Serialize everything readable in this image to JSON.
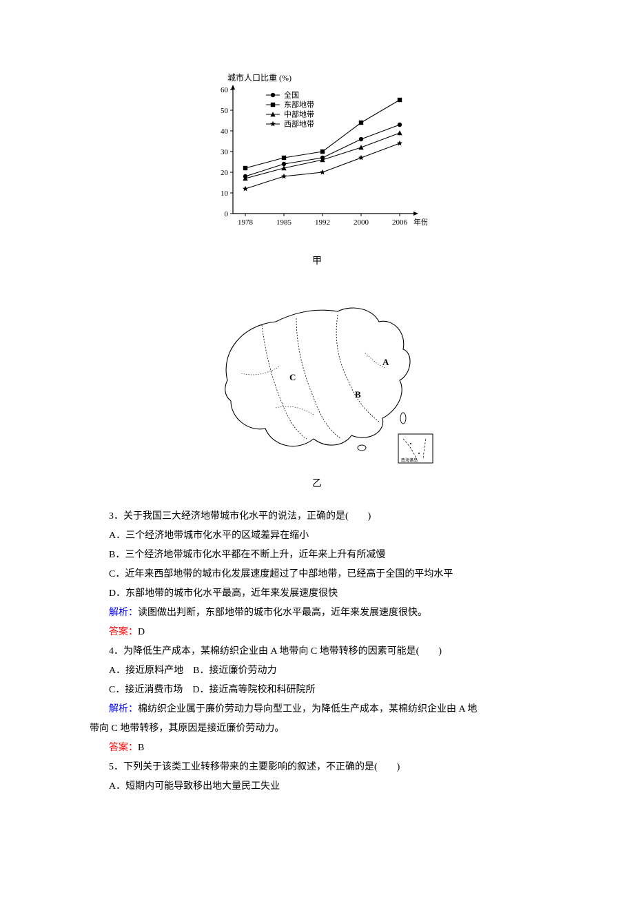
{
  "chart": {
    "ylabel": "城市人口比重 (%)",
    "caption": "甲",
    "years": [
      "1978",
      "1985",
      "1992",
      "2000",
      "2006"
    ],
    "yticks": [
      0,
      10,
      20,
      30,
      40,
      50,
      60
    ],
    "series": [
      {
        "label": "全国",
        "marker": "circle",
        "values": [
          18,
          24,
          27,
          36,
          43
        ]
      },
      {
        "label": "东部地带",
        "marker": "square",
        "values": [
          22,
          27,
          30,
          44,
          55
        ]
      },
      {
        "label": "中部地带",
        "marker": "triangle",
        "values": [
          17,
          22,
          26,
          32,
          39
        ]
      },
      {
        "label": "西部地带",
        "marker": "star",
        "values": [
          12,
          18,
          20,
          27,
          34
        ]
      }
    ],
    "xlim": [
      0,
      5
    ],
    "ylim": [
      0,
      60
    ],
    "axis_color": "#000000",
    "line_color": "#000000",
    "marker_color": "#000000",
    "background": "#ffffff",
    "font_size_axis": 11,
    "xlabel": "年份"
  },
  "map": {
    "caption": "乙",
    "labels": [
      "A",
      "B",
      "C"
    ]
  },
  "q3": {
    "stem": "3．关于我国三大经济地带城市化水平的说法，正确的是(　　)",
    "optA": "A．三个经济地带城市化水平的区域差异在缩小",
    "optB": "B．三个经济地带城市化水平都在不断上升，近年来上升有所减慢",
    "optC": "C．近年来西部地带的城市化发展速度超过了中部地带，已经高于全国的平均水平",
    "optD": "D．东部地带的城市化水平最高，近年来发展速度很快",
    "analysis_label": "解析：",
    "analysis": "读图做出判断，东部地带的城市化水平最高，近年来发展速度很快。",
    "answer_label": "答案：",
    "answer": "D"
  },
  "q4": {
    "stem": "4．为降低生产成本，某棉纺织企业由 A 地带向 C 地带转移的因素可能是(　　)",
    "optA": "A．接近原料产地",
    "optB": "B．接近廉价劳动力",
    "optC": "C．接近消费市场",
    "optD": "D．接近高等院校和科研院所",
    "analysis_label": "解析：",
    "analysis_l1": "棉纺织企业属于廉价劳动力导向型工业，为降低生产成本，某棉纺织企业由 A 地",
    "analysis_l2": "带向 C 地带转移，其原因是接近廉价劳动力。",
    "answer_label": "答案：",
    "answer": "B"
  },
  "q5": {
    "stem": "5．下列关于该类工业转移带来的主要影响的叙述，不正确的是(　　)",
    "optA": "A．短期内可能导致移出地大量民工失业"
  },
  "colors": {
    "blue": "#0000ff",
    "red": "#ff0000",
    "text": "#000000",
    "background": "#ffffff"
  }
}
